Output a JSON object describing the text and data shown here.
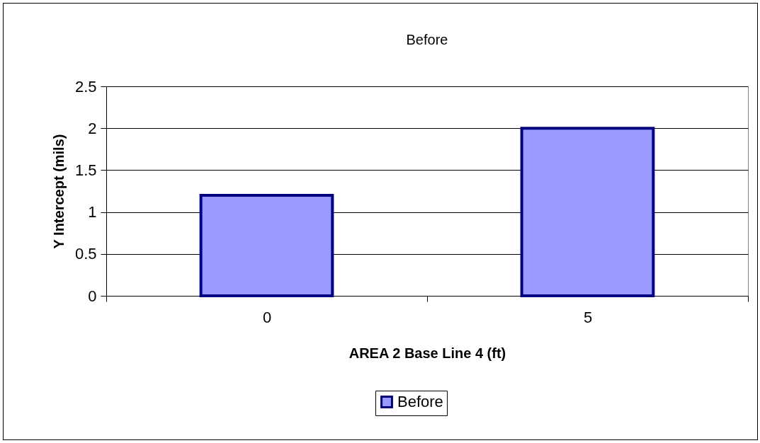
{
  "chart_data": {
    "type": "bar",
    "title": "Before",
    "xlabel": "AREA 2 Base Line 4 (ft)",
    "ylabel": "Y Intercept (mils)",
    "categories": [
      "0",
      "5"
    ],
    "series": [
      {
        "name": "Before",
        "color": "#9999ff",
        "values": [
          1.2,
          2
        ]
      }
    ],
    "ylim": [
      0,
      2.5
    ],
    "yticks": [
      0,
      0.5,
      1,
      1.5,
      2,
      2.5
    ],
    "grid": "y",
    "legend": "bottom"
  }
}
